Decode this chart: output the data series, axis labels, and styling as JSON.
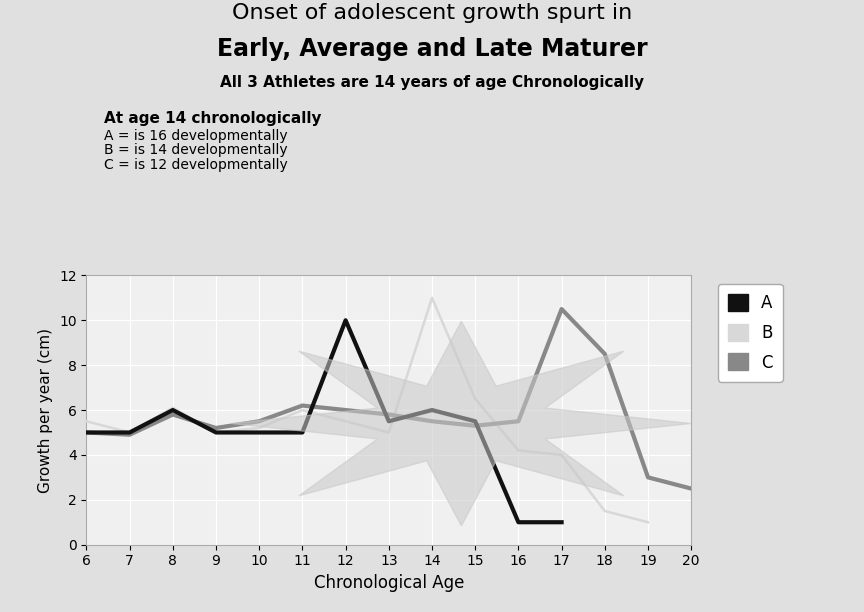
{
  "title_line1": "Onset of adolescent growth spurt in",
  "title_line2": "Early, Average and Late Maturer",
  "subtitle": "All 3 Athletes are 14 years of age Chronologically",
  "annotation_title": "At age 14 chronologically",
  "annotation_A": "A = is 16 developmentally",
  "annotation_B": "B = is 14 developmentally",
  "annotation_C": "C = is 12 developmentally",
  "xlabel": "Chronological Age",
  "ylabel": "Growth per year (cm)",
  "xlim": [
    6,
    20
  ],
  "ylim": [
    0,
    12
  ],
  "xticks": [
    6,
    7,
    8,
    9,
    10,
    11,
    12,
    13,
    14,
    15,
    16,
    17,
    18,
    19,
    20
  ],
  "yticks": [
    0,
    2,
    4,
    6,
    8,
    10,
    12
  ],
  "A_x": [
    6,
    7,
    8,
    9,
    10,
    11,
    12,
    13,
    14,
    15,
    16,
    17
  ],
  "A_y": [
    5.0,
    5.0,
    6.0,
    5.0,
    5.0,
    5.0,
    10.0,
    5.5,
    6.0,
    5.5,
    1.0,
    1.0
  ],
  "B_x": [
    6,
    7,
    8,
    9,
    10,
    11,
    12,
    13,
    14,
    15,
    16,
    17,
    18,
    19
  ],
  "B_y": [
    5.5,
    5.0,
    6.1,
    5.0,
    5.2,
    6.0,
    5.5,
    5.0,
    11.0,
    6.5,
    4.2,
    4.0,
    1.5,
    1.0
  ],
  "C_x": [
    6,
    7,
    8,
    9,
    10,
    11,
    12,
    13,
    14,
    15,
    16,
    17,
    18,
    19,
    20
  ],
  "C_y": [
    5.0,
    4.9,
    5.8,
    5.2,
    5.5,
    6.2,
    6.0,
    5.8,
    5.5,
    5.3,
    5.5,
    10.5,
    8.5,
    3.0,
    2.5
  ],
  "color_A": "#111111",
  "color_B": "#d8d8d8",
  "color_C": "#888888",
  "lw_A": 3.0,
  "lw_B": 1.8,
  "lw_C": 3.0,
  "bg_color": "#f0f0f0",
  "bg_outer": "#e0e0e0",
  "legend_labels": [
    "A",
    "B",
    "C"
  ]
}
